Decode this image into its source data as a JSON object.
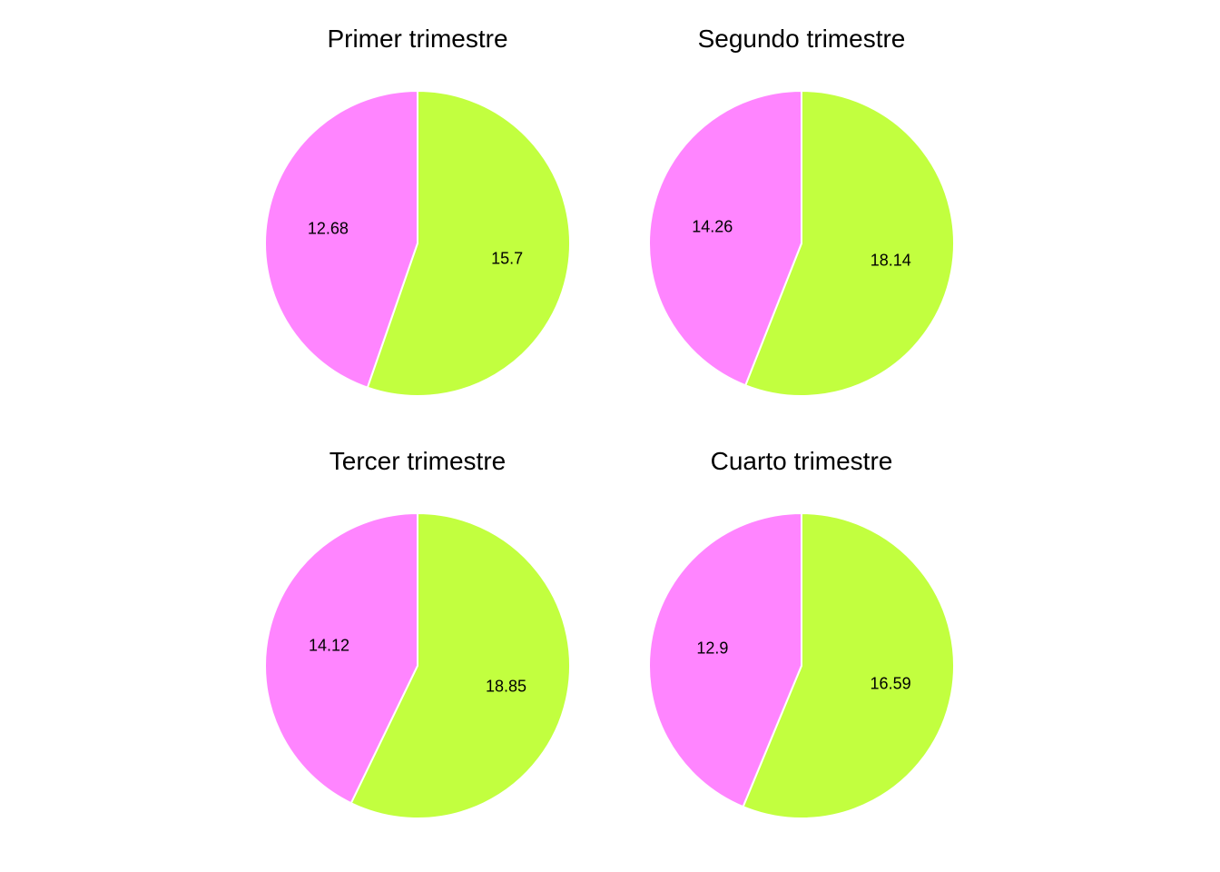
{
  "colors": {
    "slice_a": "#ff85ff",
    "slice_b": "#c2ff3f",
    "border": "#ffffff"
  },
  "chart_data": [
    {
      "type": "pie",
      "title": "Primer trimestre",
      "slices": [
        {
          "value": 12.68,
          "label": "12.68",
          "color": "#ff85ff"
        },
        {
          "value": 15.7,
          "label": "15.7",
          "color": "#c2ff3f"
        }
      ]
    },
    {
      "type": "pie",
      "title": "Segundo trimestre",
      "slices": [
        {
          "value": 14.26,
          "label": "14.26",
          "color": "#ff85ff"
        },
        {
          "value": 18.14,
          "label": "18.14",
          "color": "#c2ff3f"
        }
      ]
    },
    {
      "type": "pie",
      "title": "Tercer trimestre",
      "slices": [
        {
          "value": 14.12,
          "label": "14.12",
          "color": "#ff85ff"
        },
        {
          "value": 18.85,
          "label": "18.85",
          "color": "#c2ff3f"
        }
      ]
    },
    {
      "type": "pie",
      "title": "Cuarto trimestre",
      "slices": [
        {
          "value": 12.9,
          "label": "12.9",
          "color": "#ff85ff"
        },
        {
          "value": 16.59,
          "label": "16.59",
          "color": "#c2ff3f"
        }
      ]
    }
  ]
}
